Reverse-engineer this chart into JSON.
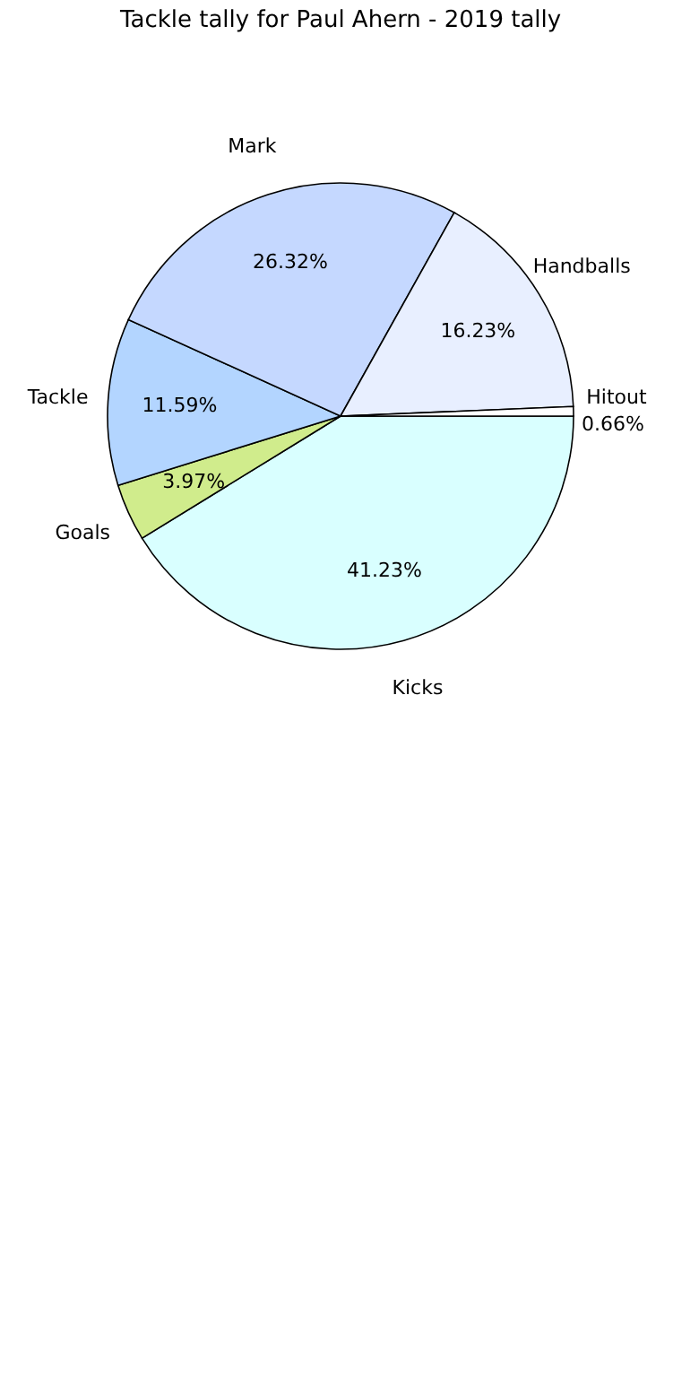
{
  "chart_data": {
    "type": "pie",
    "title": "Tackle tally for Paul Ahern - 2019 tally",
    "categories": [
      "Kicks",
      "Goals",
      "Tackle",
      "Mark",
      "Handballs",
      "Hitout"
    ],
    "values": [
      41.23,
      3.97,
      11.59,
      26.32,
      16.23,
      0.66
    ],
    "colors": [
      "#d9ffff",
      "#d0ec8c",
      "#b3d5ff",
      "#c5d8ff",
      "#e8efff",
      "#ffffff"
    ],
    "value_labels": [
      "41.23%",
      "3.97%",
      "11.59%",
      "26.32%",
      "16.23%",
      "0.66%"
    ],
    "legend": false
  }
}
